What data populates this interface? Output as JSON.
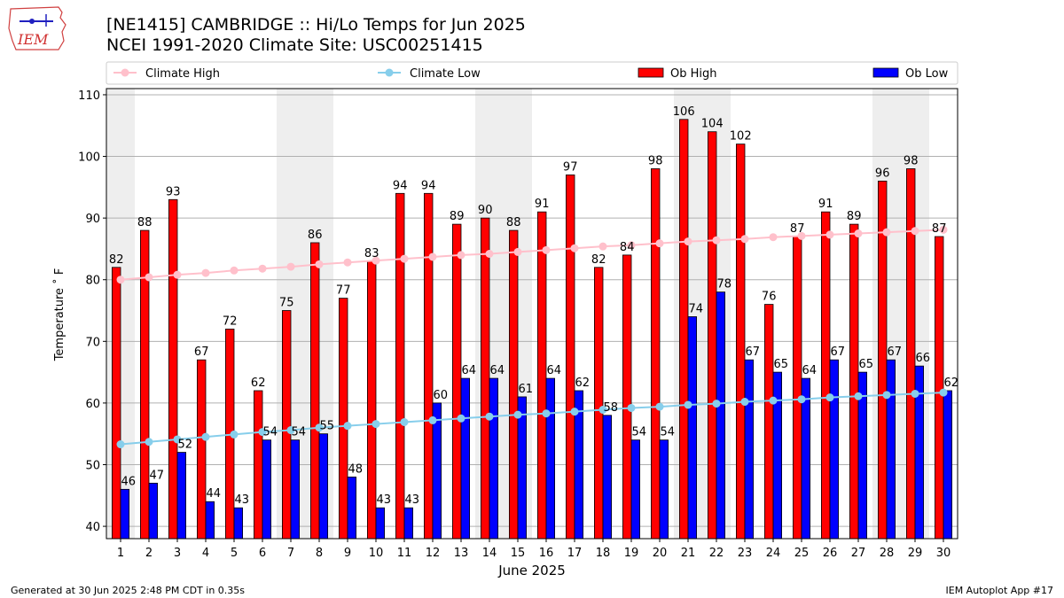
{
  "header": {
    "title_line1": "[NE1415] CAMBRIDGE :: Hi/Lo Temps for Jun 2025",
    "title_line2": "NCEI 1991-2020 Climate Site: USC00251415",
    "logo_text": "IEM"
  },
  "footer": {
    "left": "Generated at 30 Jun 2025 2:48 PM CDT in 0.35s",
    "right": "IEM Autoplot App #17"
  },
  "chart_data": {
    "type": "bar",
    "xlabel": "June 2025",
    "ylabel": "Temperature ˚ F",
    "ylim": [
      38,
      111
    ],
    "yticks": [
      40,
      50,
      60,
      70,
      80,
      90,
      100,
      110
    ],
    "grid": true,
    "legend_position": "top",
    "weekend_days": [
      1,
      7,
      8,
      14,
      15,
      21,
      22,
      28,
      29
    ],
    "categories": [
      "1",
      "2",
      "3",
      "4",
      "5",
      "6",
      "7",
      "8",
      "9",
      "10",
      "11",
      "12",
      "13",
      "14",
      "15",
      "16",
      "17",
      "18",
      "19",
      "20",
      "21",
      "22",
      "23",
      "24",
      "25",
      "26",
      "27",
      "28",
      "29",
      "30"
    ],
    "series": [
      {
        "name": "Climate High",
        "kind": "line",
        "color": "#ffc0cb",
        "values": [
          80.0,
          80.4,
          80.8,
          81.1,
          81.5,
          81.8,
          82.1,
          82.5,
          82.8,
          83.1,
          83.4,
          83.7,
          84.0,
          84.2,
          84.5,
          84.8,
          85.1,
          85.4,
          85.6,
          85.9,
          86.2,
          86.4,
          86.6,
          86.9,
          87.1,
          87.3,
          87.5,
          87.7,
          87.9,
          88.1
        ]
      },
      {
        "name": "Climate Low",
        "kind": "line",
        "color": "#87ceeb",
        "values": [
          53.3,
          53.7,
          54.1,
          54.5,
          54.9,
          55.3,
          55.6,
          56.0,
          56.3,
          56.6,
          56.9,
          57.2,
          57.5,
          57.8,
          58.1,
          58.3,
          58.6,
          58.9,
          59.2,
          59.4,
          59.7,
          59.9,
          60.2,
          60.4,
          60.6,
          60.9,
          61.1,
          61.3,
          61.5,
          61.7
        ]
      },
      {
        "name": "Ob High",
        "kind": "bar",
        "color": "#ff0000",
        "values": [
          82,
          88,
          93,
          67,
          72,
          62,
          75,
          86,
          77,
          83,
          94,
          94,
          89,
          90,
          88,
          91,
          97,
          82,
          84,
          98,
          106,
          104,
          102,
          76,
          87,
          91,
          89,
          96,
          98,
          87
        ]
      },
      {
        "name": "Ob Low",
        "kind": "bar",
        "color": "#0000ff",
        "values": [
          46,
          47,
          52,
          44,
          43,
          54,
          54,
          55,
          48,
          43,
          43,
          60,
          64,
          64,
          61,
          64,
          62,
          58,
          54,
          54,
          74,
          78,
          67,
          65,
          64,
          67,
          65,
          67,
          66,
          62
        ]
      }
    ]
  }
}
